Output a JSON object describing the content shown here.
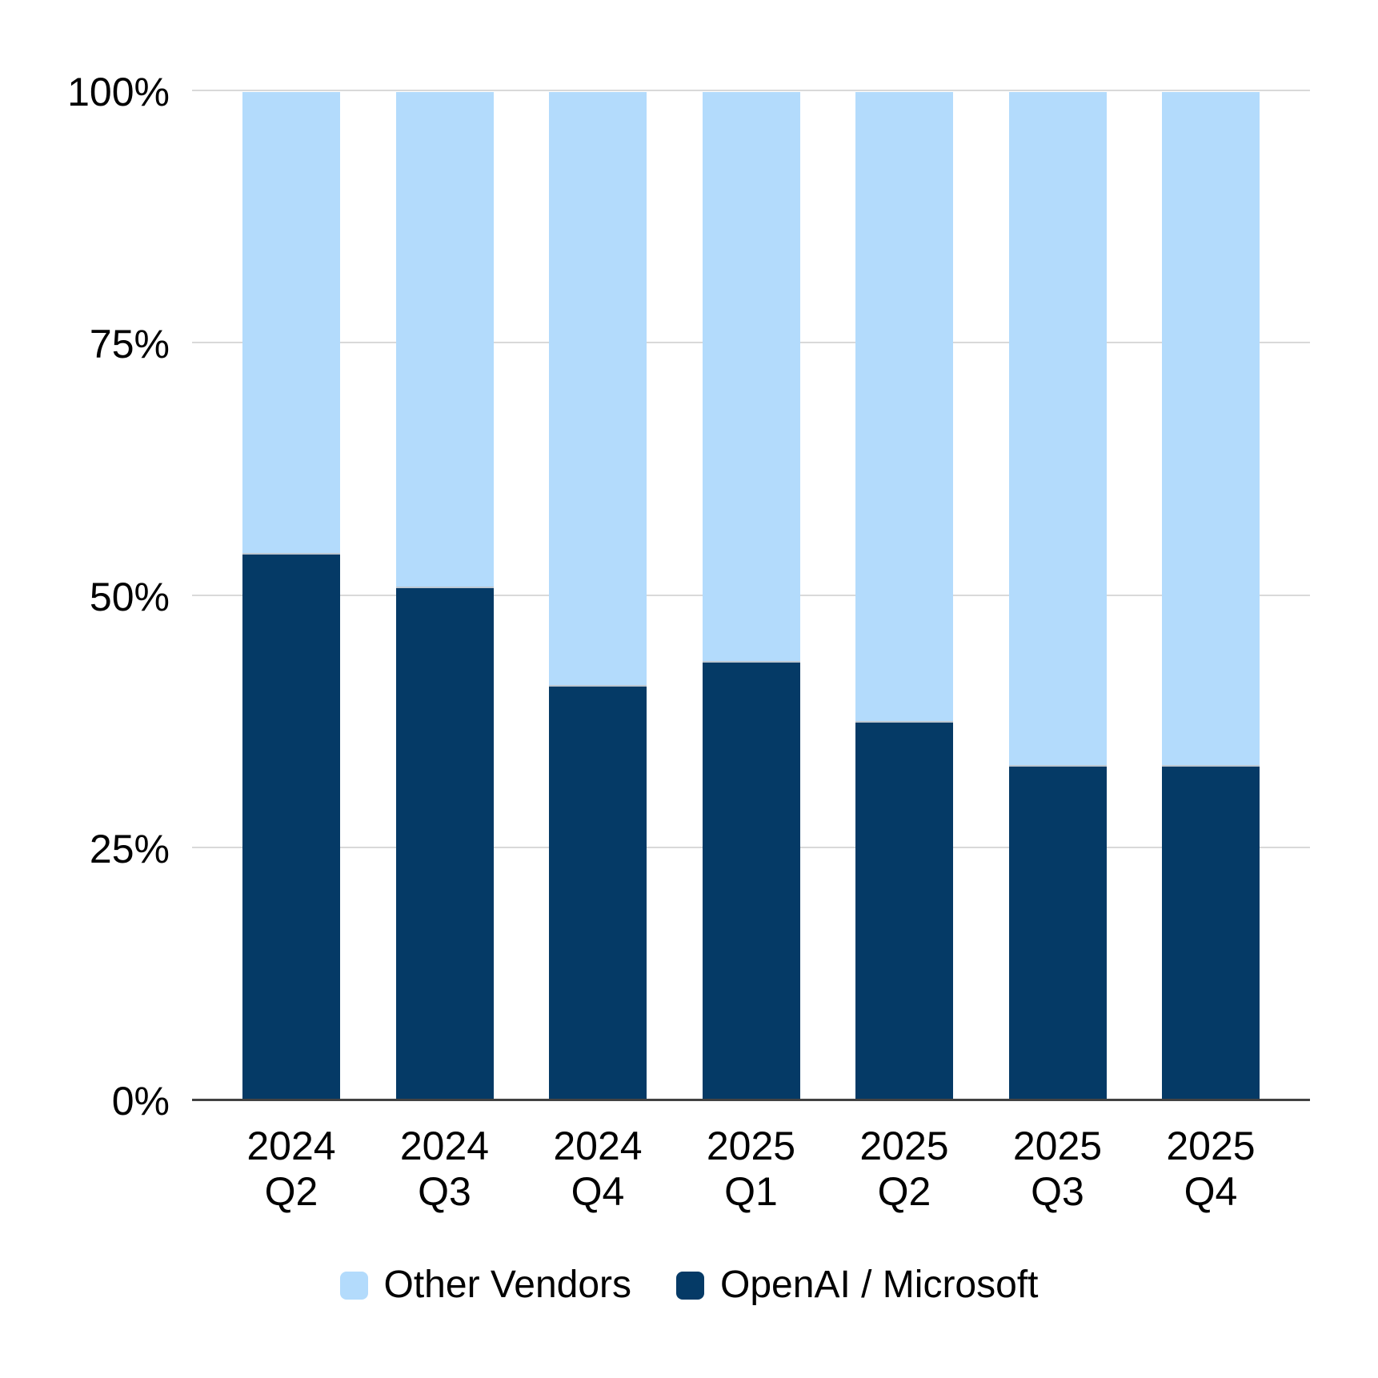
{
  "chart_data": {
    "type": "bar",
    "stacked": true,
    "percent": true,
    "title": "",
    "xlabel": "",
    "ylabel": "",
    "categories": [
      "2024 Q2",
      "2024 Q3",
      "2024 Q4",
      "2025 Q1",
      "2025 Q2",
      "2025 Q3",
      "2025 Q4"
    ],
    "category_lines": [
      [
        "2024",
        "Q2"
      ],
      [
        "2024",
        "Q3"
      ],
      [
        "2024",
        "Q4"
      ],
      [
        "2025",
        "Q1"
      ],
      [
        "2025",
        "Q2"
      ],
      [
        "2025",
        "Q3"
      ],
      [
        "2025",
        "Q4"
      ]
    ],
    "series": [
      {
        "name": "Other Vendors",
        "color": "#b3dbfc",
        "values": [
          45.7,
          49.0,
          58.8,
          56.4,
          62.3,
          66.7,
          66.7
        ]
      },
      {
        "name": "OpenAI / Microsoft",
        "color": "#053a66",
        "values": [
          54.3,
          51.0,
          41.2,
          43.6,
          37.7,
          33.3,
          33.3
        ]
      }
    ],
    "stack_order_bottom_to_top": [
      "OpenAI / Microsoft",
      "Other Vendors"
    ],
    "ylim": [
      0,
      100
    ],
    "yticks": [
      0,
      25,
      50,
      75,
      100
    ],
    "ytick_labels": [
      "0%",
      "25%",
      "50%",
      "75%",
      "100%"
    ],
    "grid": true,
    "legend_position": "bottom"
  },
  "colors": {
    "background": "#ffffff",
    "gridline": "#d9d9d9",
    "axis_line": "#424242",
    "text": "#000000",
    "segment_divider": "#bdc7d1"
  }
}
